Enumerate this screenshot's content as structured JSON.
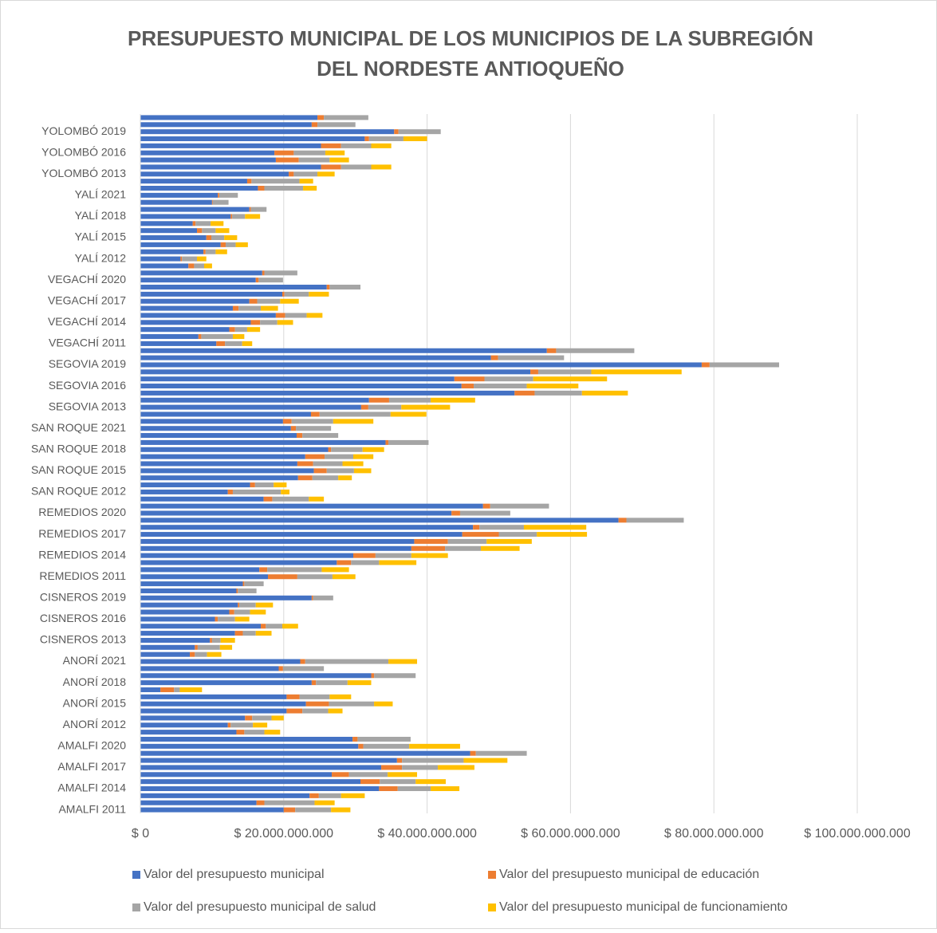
{
  "chart_data": {
    "type": "stacked_barh",
    "title": [
      "PRESUPUESTO MUNICIPAL DE LOS MUNICIPIOS DE LA SUBREGIÓN",
      "DEL NORDESTE ANTIOQUEÑO"
    ],
    "categories": [
      "AMALFI 2011",
      null,
      null,
      "AMALFI 2014",
      null,
      null,
      "AMALFI 2017",
      null,
      null,
      "AMALFI 2020",
      null,
      null,
      "ANORÍ 2012",
      null,
      null,
      "ANORÍ 2015",
      null,
      null,
      "ANORÍ 2018",
      null,
      null,
      "ANORÍ 2021",
      null,
      null,
      "CISNEROS 2013",
      null,
      null,
      "CISNEROS 2016",
      null,
      null,
      "CISNEROS 2019",
      null,
      null,
      "REMEDIOS 2011",
      null,
      null,
      "REMEDIOS 2014",
      null,
      null,
      "REMEDIOS 2017",
      null,
      null,
      "REMEDIOS 2020",
      null,
      null,
      "SAN ROQUE 2012",
      null,
      null,
      "SAN ROQUE 2015",
      null,
      null,
      "SAN ROQUE 2018",
      null,
      null,
      "SAN ROQUE 2021",
      null,
      null,
      "SEGOVIA 2013",
      null,
      null,
      "SEGOVIA 2016",
      null,
      null,
      "SEGOVIA 2019",
      null,
      null,
      "VEGACHÍ 2011",
      null,
      null,
      "VEGACHÍ 2014",
      null,
      null,
      "VEGACHÍ 2017",
      null,
      null,
      "VEGACHÍ 2020",
      null,
      null,
      "YALÍ 2012",
      null,
      null,
      "YALÍ 2015",
      null,
      null,
      "YALÍ 2018",
      null,
      null,
      "YALÍ 2021",
      null,
      null,
      "YOLOMBÓ 2013",
      null,
      null,
      "YOLOMBÓ 2016",
      null,
      null,
      "YOLOMBÓ 2019",
      null,
      null
    ],
    "series": [
      {
        "name": "Valor del presupuesto municipal",
        "color": "#4472c4",
        "values": [
          20000000000,
          16200000000,
          23600000000,
          33300000000,
          30700000000,
          26700000000,
          33600000000,
          35800000000,
          46000000000,
          30400000000,
          29600000000,
          13400000000,
          12200000000,
          14600000000,
          20400000000,
          23100000000,
          20400000000,
          2800000000,
          23900000000,
          32200000000,
          19300000000,
          22300000000,
          6900000000,
          7600000000,
          9700000000,
          13200000000,
          16800000000,
          10400000000,
          12400000000,
          13600000000,
          23900000000,
          13400000000,
          14300000000,
          17800000000,
          16600000000,
          27400000000,
          29700000000,
          37800000000,
          38200000000,
          44900000000,
          46400000000,
          66700000000,
          43400000000,
          47800000000,
          17200000000,
          12200000000,
          15300000000,
          22000000000,
          24200000000,
          21900000000,
          23000000000,
          26200000000,
          34200000000,
          21800000000,
          21000000000,
          19900000000,
          23800000000,
          30800000000,
          31900000000,
          52200000000,
          44800000000,
          43800000000,
          54400000000,
          78300000000,
          48900000000,
          56700000000,
          10600000000,
          8100000000,
          12400000000,
          15400000000,
          18900000000,
          12900000000,
          15200000000,
          19800000000,
          26000000000,
          16100000000,
          17000000000,
          6700000000,
          5600000000,
          8800000000,
          11200000000,
          9200000000,
          7900000000,
          7300000000,
          12600000000,
          15200000000,
          10000000000,
          10800000000,
          16400000000,
          14900000000,
          20700000000,
          25200000000,
          18900000000,
          18700000000,
          25200000000,
          31300000000,
          35400000000,
          23900000000,
          24700000000
        ]
      },
      {
        "name": "Valor del presupuesto municipal de educación",
        "color": "#ed7d31",
        "values": [
          1600000000,
          1100000000,
          1300000000,
          2600000000,
          2700000000,
          2400000000,
          2900000000,
          700000000,
          800000000,
          700000000,
          700000000,
          1100000000,
          400000000,
          1000000000,
          2200000000,
          3200000000,
          1800000000,
          1900000000,
          600000000,
          400000000,
          600000000,
          700000000,
          700000000,
          400000000,
          300000000,
          1100000000,
          700000000,
          400000000,
          700000000,
          200000000,
          200000000,
          200000000,
          200000000,
          4100000000,
          1100000000,
          2000000000,
          3100000000,
          4700000000,
          4700000000,
          5100000000,
          900000000,
          1100000000,
          1200000000,
          1000000000,
          1200000000,
          700000000,
          700000000,
          2000000000,
          1800000000,
          2200000000,
          2700000000,
          400000000,
          400000000,
          800000000,
          700000000,
          1200000000,
          1200000000,
          1000000000,
          2800000000,
          2800000000,
          1700000000,
          4200000000,
          1100000000,
          1100000000,
          1000000000,
          1300000000,
          1200000000,
          400000000,
          800000000,
          1300000000,
          1300000000,
          800000000,
          1100000000,
          300000000,
          400000000,
          400000000,
          300000000,
          800000000,
          200000000,
          300000000,
          700000000,
          700000000,
          700000000,
          400000000,
          200000000,
          200000000,
          100000000,
          200000000,
          900000000,
          600000000,
          700000000,
          2800000000,
          3200000000,
          2700000000,
          2800000000,
          600000000,
          600000000,
          800000000,
          900000000
        ]
      },
      {
        "name": "Valor del presupuesto municipal de salud",
        "color": "#a5a5a5",
        "values": [
          5000000000,
          7000000000,
          3100000000,
          4600000000,
          5000000000,
          5400000000,
          5000000000,
          8600000000,
          7100000000,
          6400000000,
          7400000000,
          2800000000,
          3100000000,
          2700000000,
          3600000000,
          6300000000,
          4200000000,
          800000000,
          4400000000,
          5800000000,
          5700000000,
          11600000000,
          1700000000,
          3100000000,
          1200000000,
          1800000000,
          2300000000,
          2400000000,
          2200000000,
          2300000000,
          2800000000,
          2600000000,
          2700000000,
          4900000000,
          7600000000,
          3900000000,
          5000000000,
          5000000000,
          5400000000,
          5300000000,
          6200000000,
          8000000000,
          7000000000,
          8200000000,
          5100000000,
          6700000000,
          2600000000,
          3600000000,
          3800000000,
          4100000000,
          4000000000,
          4400000000,
          5600000000,
          5000000000,
          4900000000,
          5800000000,
          9900000000,
          4600000000,
          5800000000,
          6600000000,
          7400000000,
          6800000000,
          7400000000,
          9700000000,
          9200000000,
          10900000000,
          2400000000,
          4400000000,
          1700000000,
          2400000000,
          3000000000,
          3100000000,
          3200000000,
          3400000000,
          4300000000,
          3400000000,
          4600000000,
          1400000000,
          2100000000,
          1400000000,
          1400000000,
          1800000000,
          1900000000,
          2100000000,
          1800000000,
          2200000000,
          2200000000,
          2600000000,
          5400000000,
          6700000000,
          3300000000,
          4200000000,
          4300000000,
          4400000000,
          4200000000,
          4800000000,
          5900000000,
          5300000000,
          6200000000
        ]
      },
      {
        "name": "Valor del presupuesto municipal de funcionamiento",
        "color": "#ffc000",
        "values": [
          2700000000,
          2800000000,
          3300000000,
          4000000000,
          4200000000,
          4100000000,
          5100000000,
          6100000000,
          0,
          7100000000,
          0,
          2200000000,
          2000000000,
          1700000000,
          2000000000,
          2600000000,
          3000000000,
          3100000000,
          3300000000,
          0,
          0,
          4000000000,
          2000000000,
          1700000000,
          2000000000,
          2200000000,
          2200000000,
          2000000000,
          2200000000,
          2400000000,
          0,
          0,
          0,
          3200000000,
          3800000000,
          5200000000,
          5100000000,
          5400000000,
          6300000000,
          7000000000,
          8700000000,
          0,
          0,
          0,
          2100000000,
          1200000000,
          1800000000,
          1900000000,
          2400000000,
          2900000000,
          2800000000,
          3000000000,
          0,
          0,
          0,
          5600000000,
          5000000000,
          6800000000,
          6200000000,
          6400000000,
          7200000000,
          10300000000,
          12600000000,
          0,
          0,
          0,
          1400000000,
          1600000000,
          1800000000,
          2200000000,
          2200000000,
          2400000000,
          2600000000,
          2800000000,
          0,
          0,
          0,
          1100000000,
          1300000000,
          1600000000,
          1700000000,
          1800000000,
          1900000000,
          1800000000,
          2100000000,
          0,
          0,
          0,
          1900000000,
          1900000000,
          2400000000,
          2800000000,
          2700000000,
          2700000000,
          2800000000,
          3300000000,
          0,
          0,
          0
        ]
      }
    ],
    "xlim": [
      0,
      100000000000
    ],
    "xticks": [
      {
        "value": 0,
        "label": "$ 0"
      },
      {
        "value": 20000000000,
        "label": "$ 20.000.000.000"
      },
      {
        "value": 40000000000,
        "label": "$ 40.000.000.000"
      },
      {
        "value": 60000000000,
        "label": "$ 60.000.000.000"
      },
      {
        "value": 80000000000,
        "label": "$ 80.000.000.000"
      },
      {
        "value": 100000000000,
        "label": "$ 100.000.000.000"
      }
    ],
    "grid": true
  }
}
